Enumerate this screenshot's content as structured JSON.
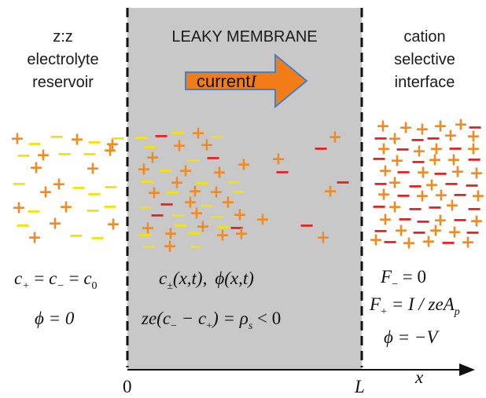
{
  "labels": {
    "left": [
      "z:z",
      "electrolyte",
      "reservoir"
    ],
    "center": "LEAKY MEMBRANE",
    "right": [
      "cation",
      "selective",
      "interface"
    ],
    "current": "current",
    "current_symbol": "I",
    "origin": "0",
    "length": "L",
    "axis": "x"
  },
  "equations": {
    "left": {
      "concentration": {
        "a": "c",
        "a_sub": "+",
        "eq1": " = ",
        "b": "c",
        "b_sub": "−",
        "eq2": " = ",
        "c": "c",
        "c_sub": "0"
      },
      "potential": "ϕ = 0"
    },
    "center": {
      "fields": {
        "c": "c",
        "c_sub": "±",
        "c_args": "(x,t),",
        "phi": "ϕ",
        "phi_args": "(x,t)"
      },
      "charge": {
        "pre": "ze(c",
        "m_sub": "−",
        "mid": " − c",
        "p_sub": "+",
        "post": ") = ρ",
        "rho_sub": "s",
        "tail": " < 0"
      }
    },
    "right": {
      "flux_minus": {
        "f": "F",
        "sub": "−",
        "rhs": " = 0"
      },
      "flux_plus": {
        "f": "F",
        "sub": "+",
        "rhs": " = I / zeA",
        "rhs_sub": "p"
      },
      "potential": "ϕ = −V"
    }
  },
  "ions": {
    "plus_symbol": "+",
    "minus_symbol": "−"
  },
  "colors": {
    "membrane_fill": "#c8c8c8",
    "cation": "#f08a24",
    "anion_free": "#f2e20f",
    "anion_fixed": "#e32222",
    "arrow_fill": "#f27d18",
    "arrow_stroke": "#4a7fc0",
    "text": "#1a1a1a"
  }
}
